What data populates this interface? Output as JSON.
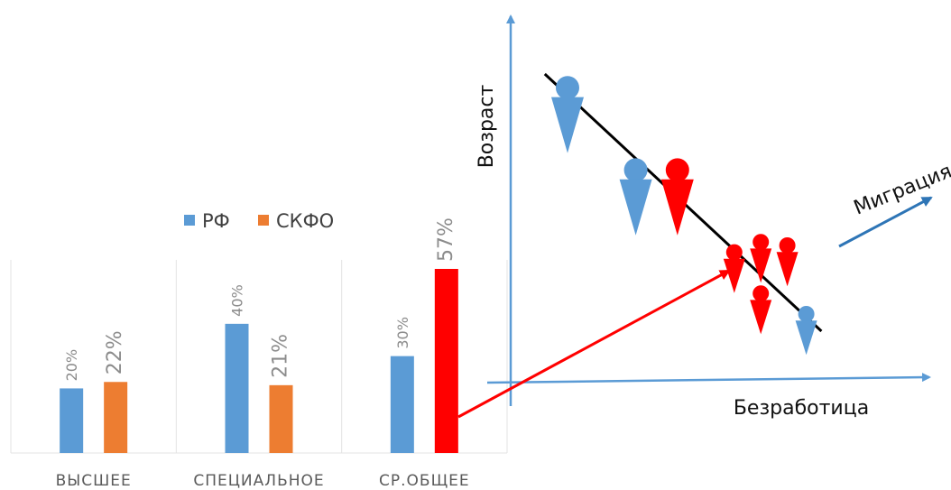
{
  "chart_data": [
    {
      "type": "bar",
      "categories": [
        "ВЫСШЕЕ",
        "СПЕЦИАЛЬНОЕ",
        "СР.ОБЩЕЕ"
      ],
      "series": [
        {
          "name": "РФ",
          "values": [
            20,
            40,
            30
          ],
          "labels": [
            "20%",
            "40%",
            "30%"
          ],
          "color": "#5b9bd5"
        },
        {
          "name": "СКФО",
          "values": [
            22,
            21,
            57
          ],
          "labels": [
            "22%",
            "21%",
            "57%"
          ],
          "color": "#ed7d31",
          "highlight_color": "#ff0000"
        }
      ],
      "highlight": {
        "series": 1,
        "category": 2
      },
      "legend": "top",
      "grid": false,
      "ylim": [
        0,
        60
      ]
    },
    {
      "type": "scatter",
      "xlabel": "Безработица",
      "ylabel": "Возраст",
      "annotation": "Миграция",
      "trend": "decreasing",
      "xlim": [
        0,
        10
      ],
      "ylim": [
        0,
        10
      ],
      "trend_line": [
        [
          0.9,
          9.0
        ],
        [
          8.2,
          1.5
        ]
      ],
      "points": [
        {
          "x": 1.5,
          "y": 8.6,
          "size": "large",
          "color": "#5b9bd5"
        },
        {
          "x": 3.3,
          "y": 6.2,
          "size": "large",
          "color": "#5b9bd5"
        },
        {
          "x": 4.4,
          "y": 6.2,
          "size": "large",
          "color": "#ff0000"
        },
        {
          "x": 5.9,
          "y": 3.8,
          "size": "small",
          "color": "#ff0000"
        },
        {
          "x": 6.6,
          "y": 4.1,
          "size": "small",
          "color": "#ff0000"
        },
        {
          "x": 7.3,
          "y": 4.0,
          "size": "small",
          "color": "#ff0000"
        },
        {
          "x": 6.6,
          "y": 2.6,
          "size": "small",
          "color": "#ff0000"
        },
        {
          "x": 7.8,
          "y": 2.0,
          "size": "small",
          "color": "#5b9bd5"
        }
      ],
      "colors": {
        "axis": "#5b9bd5",
        "trend": "#000000",
        "connector": "#ff0000",
        "migration_arrow": "#2e75b6"
      }
    }
  ]
}
